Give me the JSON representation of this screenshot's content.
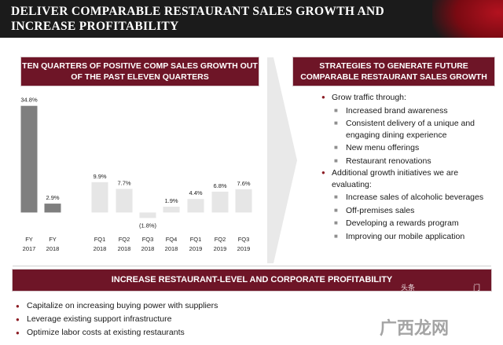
{
  "header": {
    "title": "DELIVER COMPARABLE RESTAURANT SALES GROWTH AND INCREASE PROFITABILITY"
  },
  "left_panel": {
    "banner": "TEN QUARTERS OF POSITIVE COMP SALES GROWTH OUT OF THE PAST ELEVEN QUARTERS"
  },
  "right_panel": {
    "banner": "STRATEGIES TO GENERATE FUTURE COMPARABLE RESTAURANT SALES GROWTH",
    "items": [
      {
        "level": 1,
        "text": "Grow traffic through:"
      },
      {
        "level": 2,
        "text": "Increased brand awareness"
      },
      {
        "level": 2,
        "text": "Consistent delivery of a unique and engaging dining experience"
      },
      {
        "level": 2,
        "text": "New menu offerings"
      },
      {
        "level": 2,
        "text": "Restaurant renovations"
      },
      {
        "level": 1,
        "text": "Additional growth initiatives we are evaluating:"
      },
      {
        "level": 2,
        "text": "Increase sales of alcoholic beverages"
      },
      {
        "level": 2,
        "text": "Off-premises sales"
      },
      {
        "level": 2,
        "text": "Developing a rewards program"
      },
      {
        "level": 2,
        "text": "Improving our mobile application"
      }
    ]
  },
  "bottom": {
    "banner": "INCREASE RESTAURANT-LEVEL AND CORPORATE PROFITABILITY",
    "items": [
      "Capitalize on increasing buying power with suppliers",
      "Leverage existing support infrastructure",
      "Optimize labor costs at existing restaurants"
    ]
  },
  "watermark": {
    "main": "广西龙网",
    "small_left": "头条",
    "small_right": "门"
  },
  "colors": {
    "header_bg": "#1b1b1b",
    "banner_bg": "#6e1527",
    "bullet_red": "#8c1c24",
    "annual_bar": "#7f7f7f",
    "quarter_bar": "#e6e6e6"
  },
  "chart_data": {
    "type": "bar",
    "categories": [
      [
        "FY",
        "2017"
      ],
      [
        "FY",
        "2018"
      ],
      [
        "FQ1",
        "2018"
      ],
      [
        "FQ2",
        "2018"
      ],
      [
        "FQ3",
        "2018"
      ],
      [
        "FQ4",
        "2018"
      ],
      [
        "FQ1",
        "2019"
      ],
      [
        "FQ2",
        "2019"
      ],
      [
        "FQ3",
        "2019"
      ]
    ],
    "values": [
      34.8,
      2.9,
      9.9,
      7.7,
      -1.8,
      1.9,
      4.4,
      6.8,
      7.6
    ],
    "value_labels": [
      "34.8%",
      "2.9%",
      "9.9%",
      "7.7%",
      "(1.8%)",
      "1.9%",
      "4.4%",
      "6.8%",
      "7.6%"
    ],
    "bar_kind": [
      "annual",
      "annual",
      "quarter",
      "quarter",
      "quarter",
      "quarter",
      "quarter",
      "quarter",
      "quarter"
    ],
    "ylim": [
      -4,
      36
    ],
    "grid": false,
    "title": "",
    "xlabel": "",
    "ylabel": ""
  }
}
